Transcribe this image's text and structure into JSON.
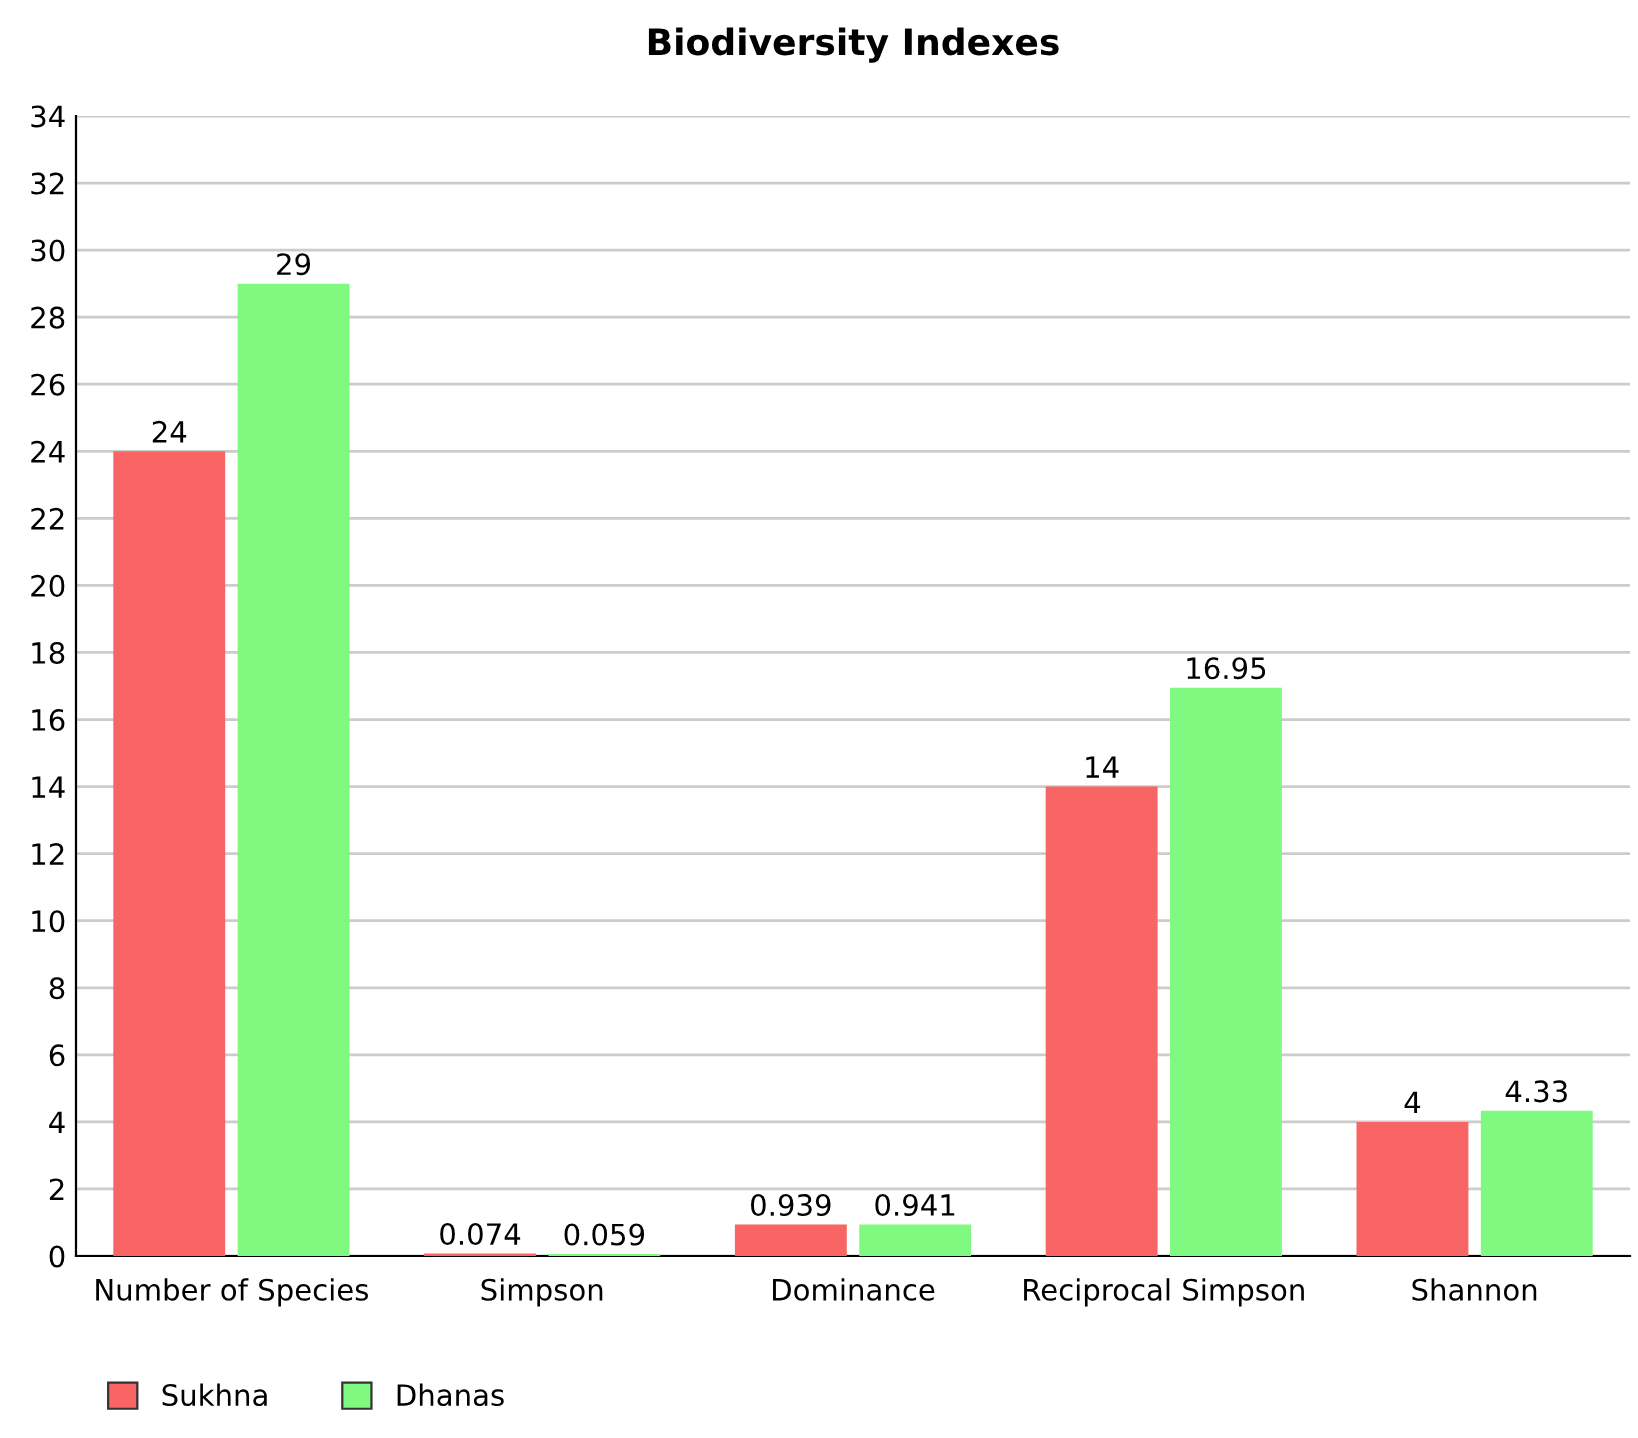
{
  "chart_data": {
    "type": "bar",
    "title": "Biodiversity Indexes",
    "categories": [
      "Number of Species",
      "Simpson",
      "Dominance",
      "Reciprocal Simpson",
      "Shannon"
    ],
    "series": [
      {
        "name": "Sukhna",
        "color": "#f96565",
        "values": [
          24,
          0.074,
          0.939,
          14,
          4
        ]
      },
      {
        "name": "Dhanas",
        "color": "#80f980",
        "values": [
          29,
          0.059,
          0.941,
          16.95,
          4.33
        ]
      }
    ],
    "ylim": [
      0,
      34
    ],
    "yticks": [
      0,
      2,
      4,
      6,
      8,
      10,
      12,
      14,
      16,
      18,
      20,
      22,
      24,
      26,
      28,
      30,
      32,
      34
    ],
    "grid": "y",
    "legend": "bottom left",
    "data_labels": true
  }
}
